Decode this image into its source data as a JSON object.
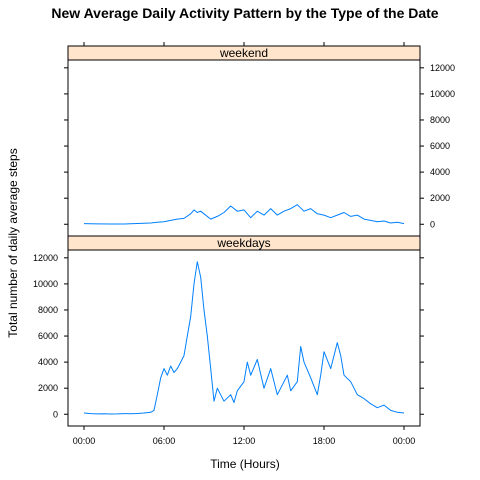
{
  "chart_data": {
    "type": "line",
    "title": "New Average Daily Activity Pattern by the Type of the Date",
    "xlabel": "Time (Hours)",
    "ylabel": "Total number of daily average steps",
    "xlim": [
      -1.2,
      25.2
    ],
    "ylim": [
      -900,
      12600
    ],
    "x_ticks": [
      0,
      6,
      12,
      18,
      24
    ],
    "x_tick_labels": [
      "00:00",
      "06:00",
      "12:00",
      "18:00",
      "00:00"
    ],
    "y_ticks": [
      0,
      2000,
      4000,
      6000,
      8000,
      10000,
      12000
    ],
    "y_tick_labels": [
      "0",
      "2000",
      "4000",
      "6000",
      "8000",
      "10000",
      "12000"
    ],
    "line_color": "#0080ff",
    "strip_color": "#ffe5cc",
    "panels": [
      {
        "name": "weekend",
        "x": [
          0,
          1,
          2,
          3,
          4,
          5,
          5.5,
          6,
          6.5,
          7,
          7.5,
          8,
          8.25,
          8.5,
          8.75,
          9,
          9.5,
          10,
          10.5,
          11,
          11.5,
          12,
          12.5,
          13,
          13.5,
          14,
          14.5,
          15,
          15.5,
          16,
          16.5,
          17,
          17.5,
          18,
          18.5,
          19,
          19.5,
          20,
          20.5,
          21,
          21.5,
          22,
          22.5,
          23,
          23.5,
          24
        ],
        "y": [
          50,
          30,
          20,
          20,
          60,
          100,
          150,
          200,
          300,
          400,
          450,
          800,
          1100,
          900,
          1000,
          800,
          400,
          600,
          900,
          1400,
          1000,
          1100,
          500,
          1000,
          700,
          1200,
          700,
          1000,
          1200,
          1500,
          1000,
          1200,
          800,
          700,
          500,
          700,
          900,
          600,
          700,
          400,
          300,
          200,
          250,
          100,
          150,
          50
        ]
      },
      {
        "name": "weekdays",
        "x": [
          0,
          0.5,
          1,
          1.5,
          2,
          2.5,
          3,
          3.5,
          4,
          4.5,
          5,
          5.25,
          5.5,
          5.75,
          6,
          6.25,
          6.5,
          6.75,
          7,
          7.25,
          7.5,
          7.75,
          8,
          8.25,
          8.5,
          8.75,
          9,
          9.25,
          9.5,
          9.75,
          10,
          10.5,
          11,
          11.25,
          11.5,
          12,
          12.25,
          12.5,
          13,
          13.5,
          14,
          14.5,
          15,
          15.25,
          15.5,
          16,
          16.25,
          16.5,
          17,
          17.5,
          17.75,
          18,
          18.5,
          19,
          19.25,
          19.5,
          20,
          20.5,
          21,
          21.5,
          22,
          22.5,
          23,
          23.5,
          24
        ],
        "y": [
          100,
          50,
          30,
          40,
          20,
          30,
          50,
          40,
          60,
          100,
          150,
          300,
          1500,
          2800,
          3500,
          3000,
          3700,
          3200,
          3500,
          4000,
          4500,
          6000,
          7500,
          10000,
          11700,
          10500,
          8000,
          6000,
          3500,
          1000,
          2000,
          1000,
          1500,
          900,
          1800,
          2500,
          4000,
          3000,
          4200,
          2000,
          3500,
          1500,
          2500,
          3000,
          1800,
          2500,
          5200,
          4000,
          2800,
          1500,
          3000,
          4800,
          3500,
          5500,
          4500,
          3000,
          2500,
          1500,
          1200,
          800,
          500,
          700,
          300,
          150,
          100
        ]
      }
    ],
    "grid": false,
    "legend": "none"
  }
}
